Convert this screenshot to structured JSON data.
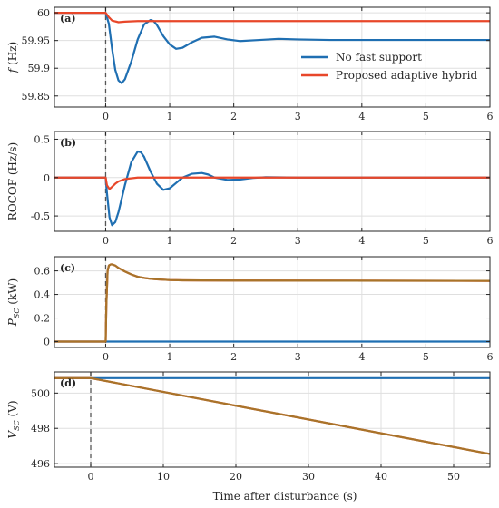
{
  "figure": {
    "xlabel": "Time after disturbance (s)"
  },
  "colors": {
    "blue": "#1f6fb2",
    "red": "#e8472a",
    "olive": "#a8742a",
    "grid": "#dfdfdf",
    "axis": "#262626",
    "dash": "#555555"
  },
  "chart_data": [
    {
      "type": "line",
      "panel": "(a)",
      "ylabel": "f (Hz)",
      "xlim": [
        -0.8,
        6
      ],
      "ylim": [
        59.83,
        60.01
      ],
      "xticks": [
        0,
        1,
        2,
        3,
        4,
        5,
        6
      ],
      "xtick_labels": [
        "0",
        "1",
        "2",
        "3",
        "4",
        "5",
        "6"
      ],
      "yticks": [
        59.85,
        59.9,
        59.95,
        60
      ],
      "ytick_labels": [
        "59.85",
        "59.9",
        "59.95",
        "60"
      ],
      "grid": true,
      "legend": "right",
      "series": [
        {
          "name": "No fast support",
          "color": "#1f6fb2",
          "x": [
            -0.8,
            0,
            0.05,
            0.1,
            0.15,
            0.2,
            0.25,
            0.3,
            0.4,
            0.5,
            0.6,
            0.7,
            0.75,
            0.8,
            0.9,
            1.0,
            1.1,
            1.2,
            1.35,
            1.5,
            1.7,
            1.9,
            2.1,
            2.4,
            2.7,
            3.0,
            3.5,
            4.0,
            5.0,
            6.0
          ],
          "y": [
            60.0,
            60.0,
            59.98,
            59.935,
            59.897,
            59.878,
            59.873,
            59.88,
            59.912,
            59.952,
            59.979,
            59.987,
            59.985,
            59.978,
            59.958,
            59.943,
            59.935,
            59.937,
            59.947,
            59.955,
            59.957,
            59.952,
            59.949,
            59.951,
            59.953,
            59.952,
            59.951,
            59.951,
            59.951,
            59.951
          ]
        },
        {
          "name": "Proposed adaptive hybrid",
          "color": "#e8472a",
          "x": [
            -0.8,
            0,
            0.05,
            0.1,
            0.2,
            0.3,
            0.5,
            1.0,
            6.0
          ],
          "y": [
            60.0,
            60.0,
            59.992,
            59.986,
            59.983,
            59.984,
            59.985,
            59.985,
            59.985
          ]
        }
      ]
    },
    {
      "type": "line",
      "panel": "(b)",
      "ylabel": "ROCOF (Hz/s)",
      "xlim": [
        -0.8,
        6
      ],
      "ylim": [
        -0.7,
        0.6
      ],
      "xticks": [
        0,
        1,
        2,
        3,
        4,
        5,
        6
      ],
      "xtick_labels": [
        "0",
        "1",
        "2",
        "3",
        "4",
        "5",
        "6"
      ],
      "yticks": [
        -0.5,
        0,
        0.5
      ],
      "ytick_labels": [
        "-0.5",
        "0",
        "0.5"
      ],
      "grid": true,
      "series": [
        {
          "name": "No fast support",
          "color": "#1f6fb2",
          "x": [
            -0.8,
            0,
            0.02,
            0.06,
            0.1,
            0.15,
            0.2,
            0.3,
            0.4,
            0.5,
            0.55,
            0.6,
            0.7,
            0.8,
            0.9,
            1.0,
            1.1,
            1.2,
            1.35,
            1.5,
            1.6,
            1.7,
            1.9,
            2.1,
            2.3,
            2.5,
            3.0,
            6.0
          ],
          "y": [
            0,
            0,
            -0.2,
            -0.52,
            -0.62,
            -0.58,
            -0.45,
            -0.1,
            0.2,
            0.34,
            0.33,
            0.27,
            0.08,
            -0.08,
            -0.16,
            -0.14,
            -0.07,
            0.0,
            0.05,
            0.06,
            0.04,
            0.0,
            -0.03,
            -0.025,
            -0.005,
            0.005,
            0.0,
            0.0
          ]
        },
        {
          "name": "Proposed adaptive hybrid",
          "color": "#e8472a",
          "x": [
            -0.8,
            0,
            0.02,
            0.06,
            0.1,
            0.15,
            0.2,
            0.3,
            0.5,
            6.0
          ],
          "y": [
            0,
            0,
            -0.1,
            -0.15,
            -0.12,
            -0.08,
            -0.05,
            -0.02,
            0.0,
            0.0
          ]
        }
      ]
    },
    {
      "type": "line",
      "panel": "(c)",
      "ylabel": "P_SC (kW)",
      "xlim": [
        -0.8,
        6
      ],
      "ylim": [
        -0.05,
        0.72
      ],
      "xticks": [
        0,
        1,
        2,
        3,
        4,
        5,
        6
      ],
      "xtick_labels": [
        "0",
        "1",
        "2",
        "3",
        "4",
        "5",
        "6"
      ],
      "yticks": [
        0,
        0.2,
        0.4,
        0.6
      ],
      "ytick_labels": [
        "0",
        "0.2",
        "0.4",
        "0.6"
      ],
      "grid": true,
      "series": [
        {
          "name": "No fast support",
          "color": "#1f6fb2",
          "x": [
            -0.8,
            6.0
          ],
          "y": [
            0,
            0
          ]
        },
        {
          "name": "Proposed adaptive hybrid",
          "color": "#e8472a",
          "x": [
            -0.8,
            0,
            0.01,
            0.03,
            0.05,
            0.08,
            0.1,
            0.15,
            0.2,
            0.3,
            0.4,
            0.5,
            0.6,
            0.7,
            0.8,
            1.0,
            1.2,
            1.5,
            2.0,
            6.0
          ],
          "y": [
            0,
            0,
            0.3,
            0.6,
            0.645,
            0.655,
            0.655,
            0.645,
            0.625,
            0.595,
            0.57,
            0.55,
            0.54,
            0.533,
            0.528,
            0.522,
            0.52,
            0.519,
            0.518,
            0.515
          ]
        },
        {
          "name": "",
          "color": "#a8742a",
          "x": [
            -0.8,
            0,
            0.01,
            0.03,
            0.05,
            0.08,
            0.1,
            0.15,
            0.2,
            0.3,
            0.4,
            0.5,
            0.6,
            0.7,
            0.8,
            1.0,
            1.2,
            1.5,
            2.0,
            6.0
          ],
          "y": [
            0,
            0,
            0.3,
            0.6,
            0.645,
            0.655,
            0.655,
            0.645,
            0.625,
            0.595,
            0.57,
            0.55,
            0.54,
            0.533,
            0.528,
            0.522,
            0.52,
            0.519,
            0.518,
            0.515
          ]
        }
      ]
    },
    {
      "type": "line",
      "panel": "(d)",
      "ylabel": "V_SC (V)",
      "xlim": [
        -5,
        55
      ],
      "ylim": [
        495.8,
        501.2
      ],
      "xticks": [
        0,
        10,
        20,
        30,
        40,
        50
      ],
      "xtick_labels": [
        "0",
        "10",
        "20",
        "30",
        "40",
        "50"
      ],
      "yticks": [
        496,
        498,
        500
      ],
      "ytick_labels": [
        "496",
        "498",
        "500"
      ],
      "grid": true,
      "series": [
        {
          "name": "No fast support",
          "color": "#1f6fb2",
          "x": [
            -5,
            55
          ],
          "y": [
            500.85,
            500.85
          ]
        },
        {
          "name": "Proposed adaptive hybrid",
          "color": "#e8472a",
          "x": [
            -5,
            0,
            55
          ],
          "y": [
            500.85,
            500.85,
            496.55
          ]
        },
        {
          "name": "",
          "color": "#a8742a",
          "x": [
            -5,
            0,
            55
          ],
          "y": [
            500.85,
            500.85,
            496.55
          ]
        }
      ]
    }
  ]
}
